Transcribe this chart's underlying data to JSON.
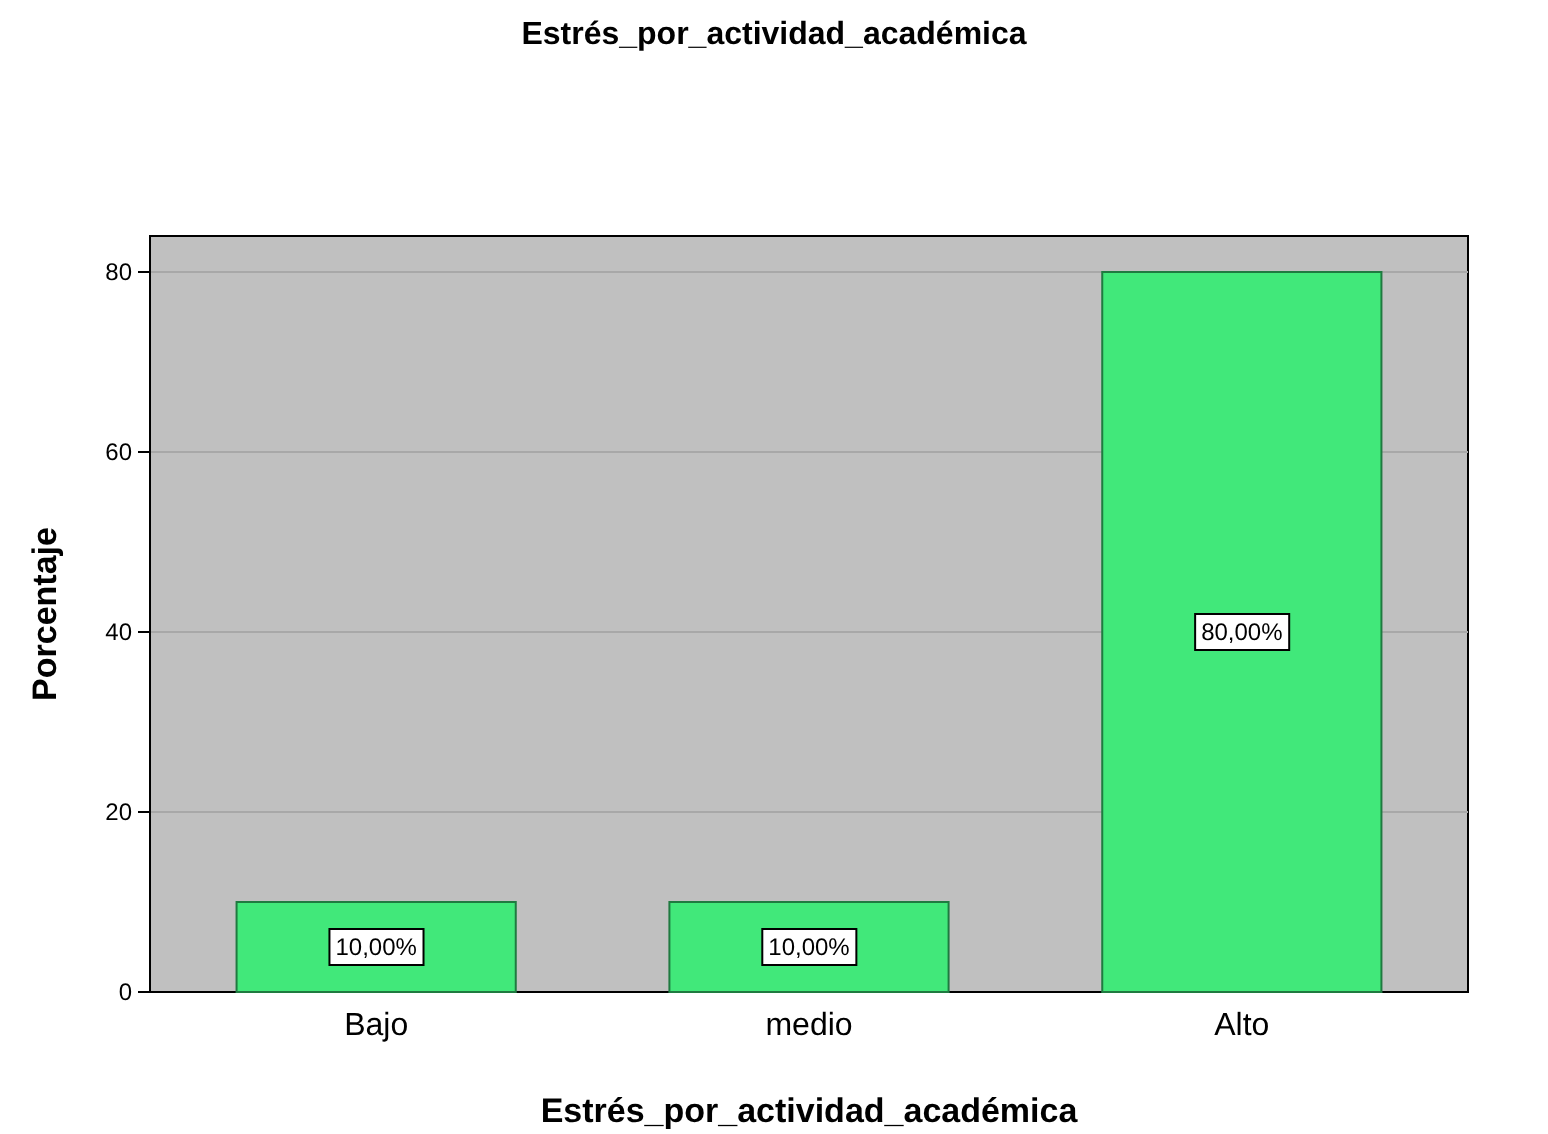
{
  "chart_data": {
    "type": "bar",
    "title": "Estrés_por_actividad_académica",
    "xlabel": "Estrés_por_actividad_académica",
    "ylabel": "Porcentaje",
    "categories": [
      "Bajo",
      "medio",
      "Alto"
    ],
    "values": [
      10,
      10,
      80
    ],
    "value_labels": [
      "10,00%",
      "10,00%",
      "80,00%"
    ],
    "color": "#41e87a",
    "ylim": [
      0,
      84
    ],
    "yticks": [
      0,
      20,
      40,
      60,
      80
    ],
    "grid": "y"
  }
}
